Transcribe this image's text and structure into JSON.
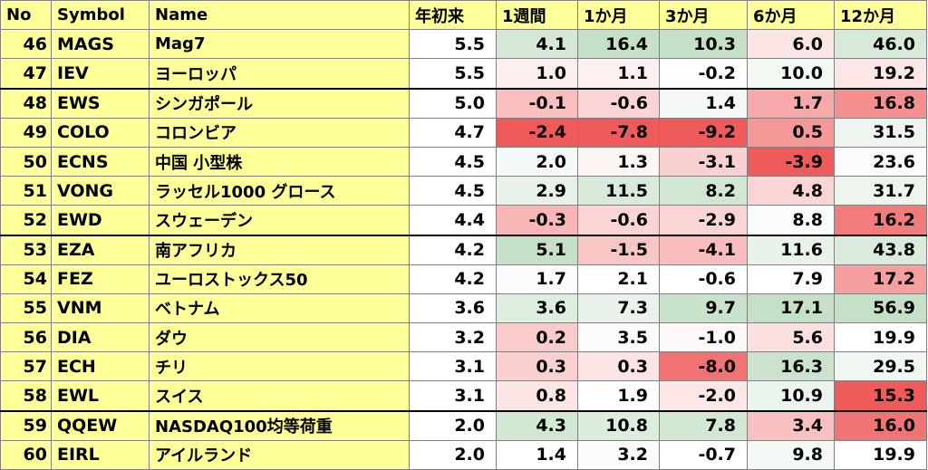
{
  "headers": [
    "No",
    "Symbol",
    "Name",
    "年初来",
    "1週間",
    "1か月",
    "3か月",
    "6か月",
    "12か月"
  ],
  "rows": [
    {
      "no": "46",
      "symbol": "MAGS",
      "name": "Mag7",
      "vals": [
        "5.5",
        "4.1",
        "16.4",
        "10.3",
        "6.0",
        "46.0"
      ]
    },
    {
      "no": "47",
      "symbol": "IEV",
      "name": "ヨーロッパ",
      "vals": [
        "5.5",
        "1.0",
        "1.1",
        "-0.2",
        "10.0",
        "19.2"
      ]
    },
    {
      "no": "48",
      "symbol": "EWS",
      "name": "シンガポール",
      "vals": [
        "5.0",
        "-0.1",
        "-0.6",
        "1.4",
        "1.7",
        "16.8"
      ]
    },
    {
      "no": "49",
      "symbol": "COLO",
      "name": "コロンビア",
      "vals": [
        "4.7",
        "-2.4",
        "-7.8",
        "-9.2",
        "0.5",
        "31.5"
      ]
    },
    {
      "no": "50",
      "symbol": "ECNS",
      "name": "中国 小型株",
      "vals": [
        "4.5",
        "2.0",
        "1.3",
        "-3.1",
        "-3.9",
        "23.6"
      ]
    },
    {
      "no": "51",
      "symbol": "VONG",
      "name": "ラッセル1000 グロース",
      "vals": [
        "4.5",
        "2.9",
        "11.5",
        "8.2",
        "4.8",
        "31.7"
      ]
    },
    {
      "no": "52",
      "symbol": "EWD",
      "name": "スウェーデン",
      "vals": [
        "4.4",
        "-0.3",
        "-0.6",
        "-2.9",
        "8.8",
        "16.2"
      ]
    },
    {
      "no": "53",
      "symbol": "EZA",
      "name": "南アフリカ",
      "vals": [
        "4.2",
        "5.1",
        "-1.5",
        "-4.1",
        "11.6",
        "43.8"
      ]
    },
    {
      "no": "54",
      "symbol": "FEZ",
      "name": "ユーロストックス50",
      "vals": [
        "4.2",
        "1.7",
        "2.1",
        "-0.6",
        "7.9",
        "17.2"
      ]
    },
    {
      "no": "55",
      "symbol": "VNM",
      "name": "ベトナム",
      "vals": [
        "3.6",
        "3.6",
        "7.3",
        "9.7",
        "17.1",
        "56.9"
      ]
    },
    {
      "no": "56",
      "symbol": "DIA",
      "name": "ダウ",
      "vals": [
        "3.2",
        "0.2",
        "3.5",
        "-1.0",
        "5.6",
        "19.9"
      ]
    },
    {
      "no": "57",
      "symbol": "ECH",
      "name": "チリ",
      "vals": [
        "3.1",
        "0.3",
        "0.3",
        "-8.0",
        "16.3",
        "29.5"
      ]
    },
    {
      "no": "58",
      "symbol": "EWL",
      "name": "スイス",
      "vals": [
        "3.1",
        "0.8",
        "1.9",
        "-2.0",
        "10.9",
        "15.3"
      ]
    },
    {
      "no": "59",
      "symbol": "QQEW",
      "name": "NASDAQ100均等荷重",
      "vals": [
        "2.0",
        "4.3",
        "10.8",
        "7.8",
        "3.4",
        "16.0"
      ]
    },
    {
      "no": "60",
      "symbol": "EIRL",
      "name": "アイルランド",
      "vals": [
        "2.0",
        "1.4",
        "3.2",
        "-0.7",
        "9.8",
        "19.9"
      ]
    }
  ],
  "colors": {
    "header_bg": "#ffff99",
    "positive": "#c6e0c8",
    "negative": "#ef5b5b",
    "neutral": "#ffffff"
  }
}
